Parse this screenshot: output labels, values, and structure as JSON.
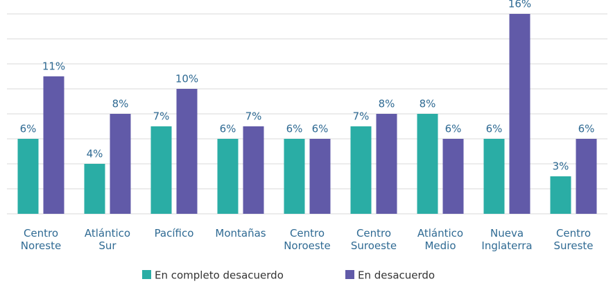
{
  "chart_data": {
    "type": "bar",
    "categories": [
      "Centro Noreste",
      "Atlántico Sur",
      "Pacífico",
      "Montañas",
      "Centro Noroeste",
      "Centro Suroeste",
      "Atlántico Medio",
      "Nueva Inglaterra",
      "Centro Sureste"
    ],
    "series": [
      {
        "name": "En completo desacuerdo",
        "color": "#2aada5",
        "values": [
          6,
          4,
          7,
          6,
          6,
          7,
          8,
          6,
          3
        ],
        "value_labels": [
          "6%",
          "4%",
          "7%",
          "6%",
          "6%",
          "7%",
          "8%",
          "6%",
          "3%"
        ]
      },
      {
        "name": "En desacuerdo",
        "color": "#615aa8",
        "values": [
          11,
          8,
          10,
          7,
          6,
          8,
          6,
          16,
          6
        ],
        "value_labels": [
          "11%",
          "8%",
          "10%",
          "7%",
          "6%",
          "8%",
          "6%",
          "16%",
          "6%"
        ]
      }
    ],
    "ylim": [
      0,
      16
    ],
    "yticks": [
      0,
      2,
      4,
      6,
      8,
      10,
      12,
      14,
      16
    ],
    "grid": true,
    "legend": "bottom"
  }
}
